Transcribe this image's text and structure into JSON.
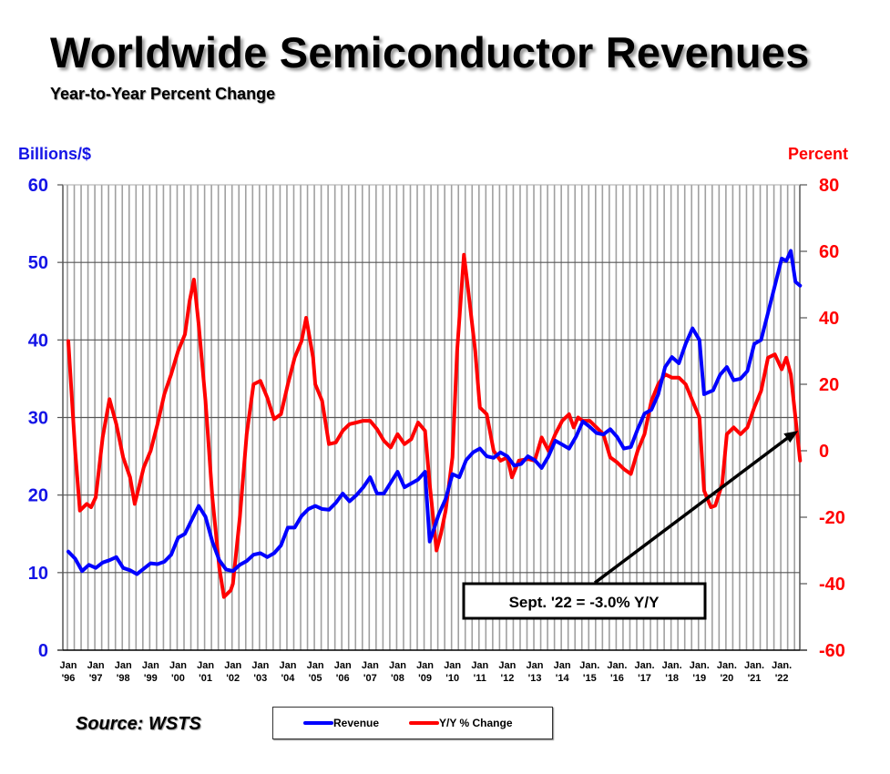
{
  "title": "Worldwide Semiconductor Revenues",
  "subtitle": "Year-to-Year Percent Change",
  "source": "Source: WSTS",
  "colors": {
    "revenue": "#0000ff",
    "yoy": "#ff0000",
    "left_axis_text": "#1414e6",
    "right_axis_text": "#ff0000",
    "grid_vertical": "#a0a0a0",
    "grid_horizontal": "#555555"
  },
  "chart_data": {
    "type": "line",
    "title": "Worldwide Semiconductor Revenues",
    "subtitle": "Year-to-Year Percent Change",
    "xlabel": "",
    "ylabel": "Billions/$",
    "y2label": "Percent",
    "ylim": [
      0,
      60
    ],
    "y2lim": [
      -60,
      80
    ],
    "yticks": [
      "60",
      "50",
      "40",
      "30",
      "20",
      "10",
      "0"
    ],
    "y2ticks": [
      "80",
      "60",
      "40",
      "20",
      "0",
      "-20",
      "-40",
      "-60"
    ],
    "grid": true,
    "legend": "bottom-center",
    "xrange": [
      1996.0,
      2022.67
    ],
    "xticks": [
      {
        "line1": "Jan",
        "line2": "'96"
      },
      {
        "line1": "Jan",
        "line2": "'97"
      },
      {
        "line1": "Jan",
        "line2": "'98"
      },
      {
        "line1": "Jan",
        "line2": "'99"
      },
      {
        "line1": "Jan",
        "line2": "'00"
      },
      {
        "line1": "Jan",
        "line2": "'01"
      },
      {
        "line1": "Jan",
        "line2": "'02"
      },
      {
        "line1": "Jan",
        "line2": "'03"
      },
      {
        "line1": "Jan",
        "line2": "'04"
      },
      {
        "line1": "Jan",
        "line2": "'05"
      },
      {
        "line1": "Jan",
        "line2": "'06"
      },
      {
        "line1": "Jan",
        "line2": "'07"
      },
      {
        "line1": "Jan",
        "line2": "'08"
      },
      {
        "line1": "Jan",
        "line2": "'09"
      },
      {
        "line1": "Jan",
        "line2": "'10"
      },
      {
        "line1": "Jan",
        "line2": "'11"
      },
      {
        "line1": "Jan",
        "line2": "'12"
      },
      {
        "line1": "Jan",
        "line2": "'13"
      },
      {
        "line1": "Jan",
        "line2": "'14"
      },
      {
        "line1": "Jan.",
        "line2": "'15"
      },
      {
        "line1": "Jan.",
        "line2": "'16"
      },
      {
        "line1": "Jan.",
        "line2": "'17"
      },
      {
        "line1": "Jan.",
        "line2": "'18"
      },
      {
        "line1": "Jan.",
        "line2": "'19"
      },
      {
        "line1": "Jan.",
        "line2": "'20"
      },
      {
        "line1": "Jan.",
        "line2": "'21"
      },
      {
        "line1": "Jan.",
        "line2": "'22"
      }
    ],
    "series": [
      {
        "name": "Revenue",
        "axis": "left",
        "unit": "Billions $",
        "points": [
          [
            1996.0,
            12.7
          ],
          [
            1996.25,
            11.8
          ],
          [
            1996.5,
            10.2
          ],
          [
            1996.75,
            11.0
          ],
          [
            1997.0,
            10.6
          ],
          [
            1997.25,
            11.3
          ],
          [
            1997.5,
            11.6
          ],
          [
            1997.75,
            12.0
          ],
          [
            1998.0,
            10.6
          ],
          [
            1998.25,
            10.3
          ],
          [
            1998.5,
            9.8
          ],
          [
            1998.75,
            10.5
          ],
          [
            1999.0,
            11.2
          ],
          [
            1999.25,
            11.1
          ],
          [
            1999.5,
            11.4
          ],
          [
            1999.75,
            12.3
          ],
          [
            2000.0,
            14.5
          ],
          [
            2000.25,
            15.0
          ],
          [
            2000.5,
            16.8
          ],
          [
            2000.75,
            18.6
          ],
          [
            2001.0,
            17.2
          ],
          [
            2001.25,
            14.0
          ],
          [
            2001.5,
            11.6
          ],
          [
            2001.75,
            10.4
          ],
          [
            2002.0,
            10.2
          ],
          [
            2002.25,
            11.0
          ],
          [
            2002.5,
            11.5
          ],
          [
            2002.75,
            12.3
          ],
          [
            2003.0,
            12.5
          ],
          [
            2003.25,
            12.0
          ],
          [
            2003.5,
            12.5
          ],
          [
            2003.75,
            13.5
          ],
          [
            2004.0,
            15.8
          ],
          [
            2004.25,
            15.8
          ],
          [
            2004.5,
            17.3
          ],
          [
            2004.75,
            18.2
          ],
          [
            2005.0,
            18.6
          ],
          [
            2005.25,
            18.2
          ],
          [
            2005.5,
            18.1
          ],
          [
            2005.75,
            19.0
          ],
          [
            2006.0,
            20.2
          ],
          [
            2006.25,
            19.2
          ],
          [
            2006.5,
            20.0
          ],
          [
            2006.75,
            21.0
          ],
          [
            2007.0,
            22.3
          ],
          [
            2007.25,
            20.2
          ],
          [
            2007.5,
            20.2
          ],
          [
            2007.75,
            21.6
          ],
          [
            2008.0,
            23.0
          ],
          [
            2008.25,
            21.0
          ],
          [
            2008.5,
            21.5
          ],
          [
            2008.75,
            22.0
          ],
          [
            2009.0,
            23.0
          ],
          [
            2009.17,
            14.0
          ],
          [
            2009.5,
            17.5
          ],
          [
            2009.75,
            19.5
          ],
          [
            2010.0,
            22.7
          ],
          [
            2010.25,
            22.3
          ],
          [
            2010.5,
            24.5
          ],
          [
            2010.75,
            25.5
          ],
          [
            2011.0,
            26.0
          ],
          [
            2011.25,
            25.0
          ],
          [
            2011.5,
            24.8
          ],
          [
            2011.75,
            25.5
          ],
          [
            2012.0,
            25.0
          ],
          [
            2012.25,
            23.8
          ],
          [
            2012.5,
            24.0
          ],
          [
            2012.75,
            25.0
          ],
          [
            2013.0,
            24.5
          ],
          [
            2013.25,
            23.5
          ],
          [
            2013.5,
            25.0
          ],
          [
            2013.75,
            27.0
          ],
          [
            2014.0,
            26.5
          ],
          [
            2014.25,
            26.0
          ],
          [
            2014.5,
            27.5
          ],
          [
            2014.75,
            29.5
          ],
          [
            2015.0,
            28.8
          ],
          [
            2015.25,
            28.0
          ],
          [
            2015.5,
            27.8
          ],
          [
            2015.75,
            28.5
          ],
          [
            2016.0,
            27.5
          ],
          [
            2016.25,
            26.0
          ],
          [
            2016.5,
            26.2
          ],
          [
            2016.75,
            28.5
          ],
          [
            2017.0,
            30.5
          ],
          [
            2017.25,
            31.0
          ],
          [
            2017.5,
            33.0
          ],
          [
            2017.75,
            36.5
          ],
          [
            2018.0,
            37.8
          ],
          [
            2018.25,
            37.0
          ],
          [
            2018.5,
            39.5
          ],
          [
            2018.75,
            41.5
          ],
          [
            2019.0,
            40.0
          ],
          [
            2019.17,
            33.0
          ],
          [
            2019.5,
            33.5
          ],
          [
            2019.75,
            35.5
          ],
          [
            2020.0,
            36.5
          ],
          [
            2020.25,
            34.8
          ],
          [
            2020.5,
            35.0
          ],
          [
            2020.75,
            36.0
          ],
          [
            2021.0,
            39.5
          ],
          [
            2021.25,
            40.0
          ],
          [
            2021.5,
            43.5
          ],
          [
            2021.75,
            47.0
          ],
          [
            2022.0,
            50.5
          ],
          [
            2022.17,
            50.2
          ],
          [
            2022.33,
            51.5
          ],
          [
            2022.5,
            47.5
          ],
          [
            2022.67,
            47.0
          ]
        ]
      },
      {
        "name": "Y/Y % Change",
        "axis": "right",
        "unit": "Percent",
        "points": [
          [
            1996.0,
            33.0
          ],
          [
            1996.25,
            0.0
          ],
          [
            1996.42,
            -18.0
          ],
          [
            1996.67,
            -16.0
          ],
          [
            1996.83,
            -17.0
          ],
          [
            1997.0,
            -14.0
          ],
          [
            1997.25,
            4.0
          ],
          [
            1997.5,
            15.5
          ],
          [
            1997.75,
            8.0
          ],
          [
            1998.0,
            -2.0
          ],
          [
            1998.25,
            -8.0
          ],
          [
            1998.42,
            -16.0
          ],
          [
            1998.75,
            -5.0
          ],
          [
            1999.0,
            0.0
          ],
          [
            1999.25,
            8.0
          ],
          [
            1999.5,
            17.0
          ],
          [
            1999.75,
            23.0
          ],
          [
            2000.0,
            30.0
          ],
          [
            2000.25,
            35.0
          ],
          [
            2000.42,
            45.0
          ],
          [
            2000.58,
            51.5
          ],
          [
            2000.75,
            38.0
          ],
          [
            2001.0,
            15.0
          ],
          [
            2001.25,
            -14.0
          ],
          [
            2001.5,
            -35.0
          ],
          [
            2001.67,
            -44.0
          ],
          [
            2001.92,
            -42.0
          ],
          [
            2002.0,
            -40.0
          ],
          [
            2002.25,
            -20.0
          ],
          [
            2002.5,
            5.0
          ],
          [
            2002.75,
            20.0
          ],
          [
            2003.0,
            21.0
          ],
          [
            2003.25,
            16.0
          ],
          [
            2003.5,
            9.5
          ],
          [
            2003.75,
            11.0
          ],
          [
            2004.0,
            20.0
          ],
          [
            2004.25,
            28.0
          ],
          [
            2004.5,
            33.0
          ],
          [
            2004.67,
            40.0
          ],
          [
            2004.92,
            28.0
          ],
          [
            2005.0,
            20.0
          ],
          [
            2005.25,
            15.0
          ],
          [
            2005.5,
            2.0
          ],
          [
            2005.75,
            2.5
          ],
          [
            2006.0,
            6.0
          ],
          [
            2006.25,
            8.0
          ],
          [
            2006.5,
            8.5
          ],
          [
            2006.75,
            9.0
          ],
          [
            2007.0,
            9.0
          ],
          [
            2007.25,
            6.5
          ],
          [
            2007.5,
            3.0
          ],
          [
            2007.75,
            1.0
          ],
          [
            2008.0,
            5.0
          ],
          [
            2008.25,
            2.0
          ],
          [
            2008.5,
            3.5
          ],
          [
            2008.75,
            8.5
          ],
          [
            2009.0,
            6.0
          ],
          [
            2009.17,
            -10.0
          ],
          [
            2009.42,
            -30.0
          ],
          [
            2009.58,
            -25.0
          ],
          [
            2009.75,
            -18.0
          ],
          [
            2010.0,
            -2.0
          ],
          [
            2010.17,
            30.0
          ],
          [
            2010.42,
            59.0
          ],
          [
            2010.58,
            48.0
          ],
          [
            2010.83,
            30.0
          ],
          [
            2011.0,
            13.0
          ],
          [
            2011.25,
            11.0
          ],
          [
            2011.5,
            0.0
          ],
          [
            2011.75,
            -3.0
          ],
          [
            2012.0,
            -2.0
          ],
          [
            2012.17,
            -8.0
          ],
          [
            2012.42,
            -3.0
          ],
          [
            2012.75,
            -2.5
          ],
          [
            2013.0,
            -3.0
          ],
          [
            2013.25,
            4.0
          ],
          [
            2013.5,
            0.0
          ],
          [
            2013.75,
            5.0
          ],
          [
            2014.0,
            9.0
          ],
          [
            2014.25,
            11.0
          ],
          [
            2014.42,
            7.0
          ],
          [
            2014.58,
            10.0
          ],
          [
            2014.75,
            9.0
          ],
          [
            2015.0,
            9.0
          ],
          [
            2015.25,
            7.0
          ],
          [
            2015.5,
            5.0
          ],
          [
            2015.75,
            -2.0
          ],
          [
            2016.0,
            -3.5
          ],
          [
            2016.25,
            -5.5
          ],
          [
            2016.5,
            -7.0
          ],
          [
            2016.75,
            0.0
          ],
          [
            2017.0,
            5.0
          ],
          [
            2017.25,
            15.0
          ],
          [
            2017.5,
            20.0
          ],
          [
            2017.75,
            23.0
          ],
          [
            2018.0,
            22.0
          ],
          [
            2018.25,
            22.0
          ],
          [
            2018.5,
            20.0
          ],
          [
            2018.75,
            15.0
          ],
          [
            2019.0,
            10.0
          ],
          [
            2019.17,
            -12.0
          ],
          [
            2019.42,
            -17.0
          ],
          [
            2019.58,
            -16.5
          ],
          [
            2019.83,
            -10.0
          ],
          [
            2020.0,
            5.0
          ],
          [
            2020.25,
            7.0
          ],
          [
            2020.5,
            5.0
          ],
          [
            2020.75,
            7.0
          ],
          [
            2021.0,
            13.0
          ],
          [
            2021.25,
            18.0
          ],
          [
            2021.5,
            28.0
          ],
          [
            2021.75,
            29.0
          ],
          [
            2022.0,
            24.5
          ],
          [
            2022.17,
            28.0
          ],
          [
            2022.33,
            23.0
          ],
          [
            2022.5,
            10.0
          ],
          [
            2022.67,
            -3.0
          ]
        ]
      }
    ],
    "annotations": [
      {
        "text": "Sept. '22 = -3.0% Y/Y",
        "points_to": [
          2022.67,
          6.0
        ],
        "axis": "right"
      }
    ]
  },
  "legend": {
    "items": [
      {
        "label": "Revenue",
        "color": "#0000ff"
      },
      {
        "label": "Y/Y % Change",
        "color": "#ff0000"
      }
    ]
  }
}
